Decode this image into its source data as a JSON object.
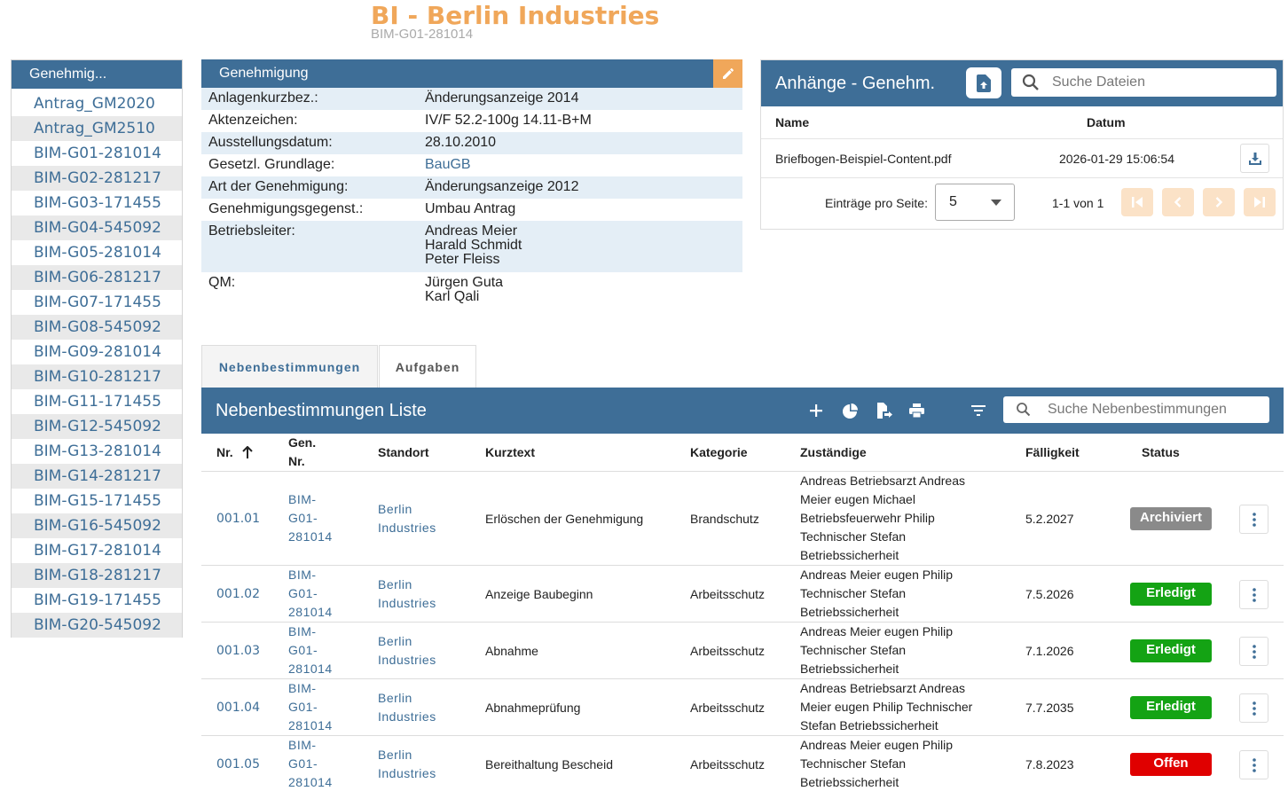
{
  "header": {
    "title": "BI - Berlin Industries",
    "subtitle": "BIM-G01-281014"
  },
  "sidebar": {
    "title": "Genehmig...",
    "items": [
      {
        "label": "Antrag_GM2020"
      },
      {
        "label": "Antrag_GM2510"
      },
      {
        "label": "BIM-G01-281014"
      },
      {
        "label": "BIM-G02-281217"
      },
      {
        "label": "BIM-G03-171455"
      },
      {
        "label": "BIM-G04-545092"
      },
      {
        "label": "BIM-G05-281014"
      },
      {
        "label": "BIM-G06-281217"
      },
      {
        "label": "BIM-G07-171455"
      },
      {
        "label": "BIM-G08-545092"
      },
      {
        "label": "BIM-G09-281014"
      },
      {
        "label": "BIM-G10-281217"
      },
      {
        "label": "BIM-G11-171455"
      },
      {
        "label": "BIM-G12-545092"
      },
      {
        "label": "BIM-G13-281014"
      },
      {
        "label": "BIM-G14-281217"
      },
      {
        "label": "BIM-G15-171455"
      },
      {
        "label": "BIM-G16-545092"
      },
      {
        "label": "BIM-G17-281014"
      },
      {
        "label": "BIM-G18-281217"
      },
      {
        "label": "BIM-G19-171455"
      },
      {
        "label": "BIM-G20-545092"
      }
    ]
  },
  "genehmigung": {
    "title": "Genehmigung",
    "edit_icon": "pencil-icon",
    "rows": [
      {
        "key": "Anlagenkurzbez.:",
        "lines": [
          "Änderungsanzeige 2014"
        ]
      },
      {
        "key": "Aktenzeichen:",
        "lines": [
          "IV/F 52.2-100g 14.11-B+M"
        ]
      },
      {
        "key": "Ausstellungsdatum:",
        "lines": [
          "28.10.2010"
        ]
      },
      {
        "key": "Gesetzl. Grundlage:",
        "lines": [
          "BauGB"
        ]
      },
      {
        "key": "Art der Genehmigung:",
        "lines": [
          "Änderungsanzeige 2012"
        ]
      },
      {
        "key": "Genehmigungsgegenst.:",
        "lines": [
          "Umbau Antrag"
        ]
      },
      {
        "key": "Betriebsleiter:",
        "lines": [
          "Andreas Meier",
          "Harald Schmidt",
          "Peter Fleiss"
        ]
      },
      {
        "key": "QM:",
        "lines": [
          "Jürgen Guta",
          "Karl Qali"
        ]
      }
    ]
  },
  "attachments": {
    "title": "Anhänge - Genehm.",
    "search_placeholder": "Suche Dateien",
    "col_name": "Name",
    "col_date": "Datum",
    "files": [
      {
        "name": "Briefbogen-Beispiel-Content.pdf",
        "date": "2026-01-29 15:06:54"
      }
    ],
    "per_page_label": "Einträge pro Seite:",
    "per_page_value": "5",
    "range": "1-1 von 1"
  },
  "tabs": [
    {
      "label": "Nebenbestimmungen",
      "active": true
    },
    {
      "label": "Aufgaben",
      "active": false
    }
  ],
  "list": {
    "title": "Nebenbestimmungen Liste",
    "search_placeholder": "Suche Nebenbestimmungen",
    "toolbar_icons": [
      "plus-icon",
      "pie-chart-icon",
      "export-file-icon",
      "print-icon",
      "filter-icon"
    ],
    "columns": {
      "nr": "Nr.",
      "gen": [
        "Gen.",
        "Nr."
      ],
      "standort": "Standort",
      "kurztext": "Kurztext",
      "kategorie": "Kategorie",
      "zustaendige": "Zuständige",
      "faelligkeit": "Fälligkeit",
      "status": "Status"
    },
    "rows": [
      {
        "nr": "001.01",
        "gen": [
          "BIM-",
          "G01-",
          "281014"
        ],
        "standort": [
          "Berlin",
          "Industries"
        ],
        "kurztext": "Erlöschen der Genehmigung",
        "kategorie": "Brandschutz",
        "zust": [
          "Andreas Betriebsarzt Andreas",
          "Meier eugen Michael",
          "Betriebsfeuerwehr Philip",
          "Technischer Stefan",
          "Betriebssicherheit"
        ],
        "faellig": "5.2.2027",
        "status": "Archiviert",
        "status_color": "#8a8a8a"
      },
      {
        "nr": "001.02",
        "gen": [
          "BIM-",
          "G01-",
          "281014"
        ],
        "standort": [
          "Berlin",
          "Industries"
        ],
        "kurztext": "Anzeige Baubeginn",
        "kategorie": "Arbeitsschutz",
        "zust": [
          "Andreas Meier eugen Philip",
          "Technischer Stefan",
          "Betriebssicherheit"
        ],
        "faellig": "7.5.2026",
        "status": "Erledigt",
        "status_color": "#14a314"
      },
      {
        "nr": "001.03",
        "gen": [
          "BIM-",
          "G01-",
          "281014"
        ],
        "standort": [
          "Berlin",
          "Industries"
        ],
        "kurztext": "Abnahme",
        "kategorie": "Arbeitsschutz",
        "zust": [
          "Andreas Meier eugen Philip",
          "Technischer Stefan",
          "Betriebssicherheit"
        ],
        "faellig": "7.1.2026",
        "status": "Erledigt",
        "status_color": "#14a314"
      },
      {
        "nr": "001.04",
        "gen": [
          "BIM-",
          "G01-",
          "281014"
        ],
        "standort": [
          "Berlin",
          "Industries"
        ],
        "kurztext": "Abnahmeprüfung",
        "kategorie": "Arbeitsschutz",
        "zust": [
          "Andreas Betriebsarzt Andreas",
          "Meier eugen Philip Technischer",
          "Stefan Betriebssicherheit"
        ],
        "faellig": "7.7.2035",
        "status": "Erledigt",
        "status_color": "#14a314"
      },
      {
        "nr": "001.05",
        "gen": [
          "BIM-",
          "G01-",
          "281014"
        ],
        "standort": [
          "Berlin",
          "Industries"
        ],
        "kurztext": "Bereithaltung Bescheid",
        "kategorie": "Arbeitsschutz",
        "zust": [
          "Andreas Meier eugen Philip",
          "Technischer Stefan",
          "Betriebssicherheit"
        ],
        "faellig": "7.8.2023",
        "status": "Offen",
        "status_color": "#e00000"
      }
    ]
  },
  "colors": {
    "primary": "#3e6e97",
    "accent": "#f0a75a",
    "row_alt": "#e4eef6"
  }
}
